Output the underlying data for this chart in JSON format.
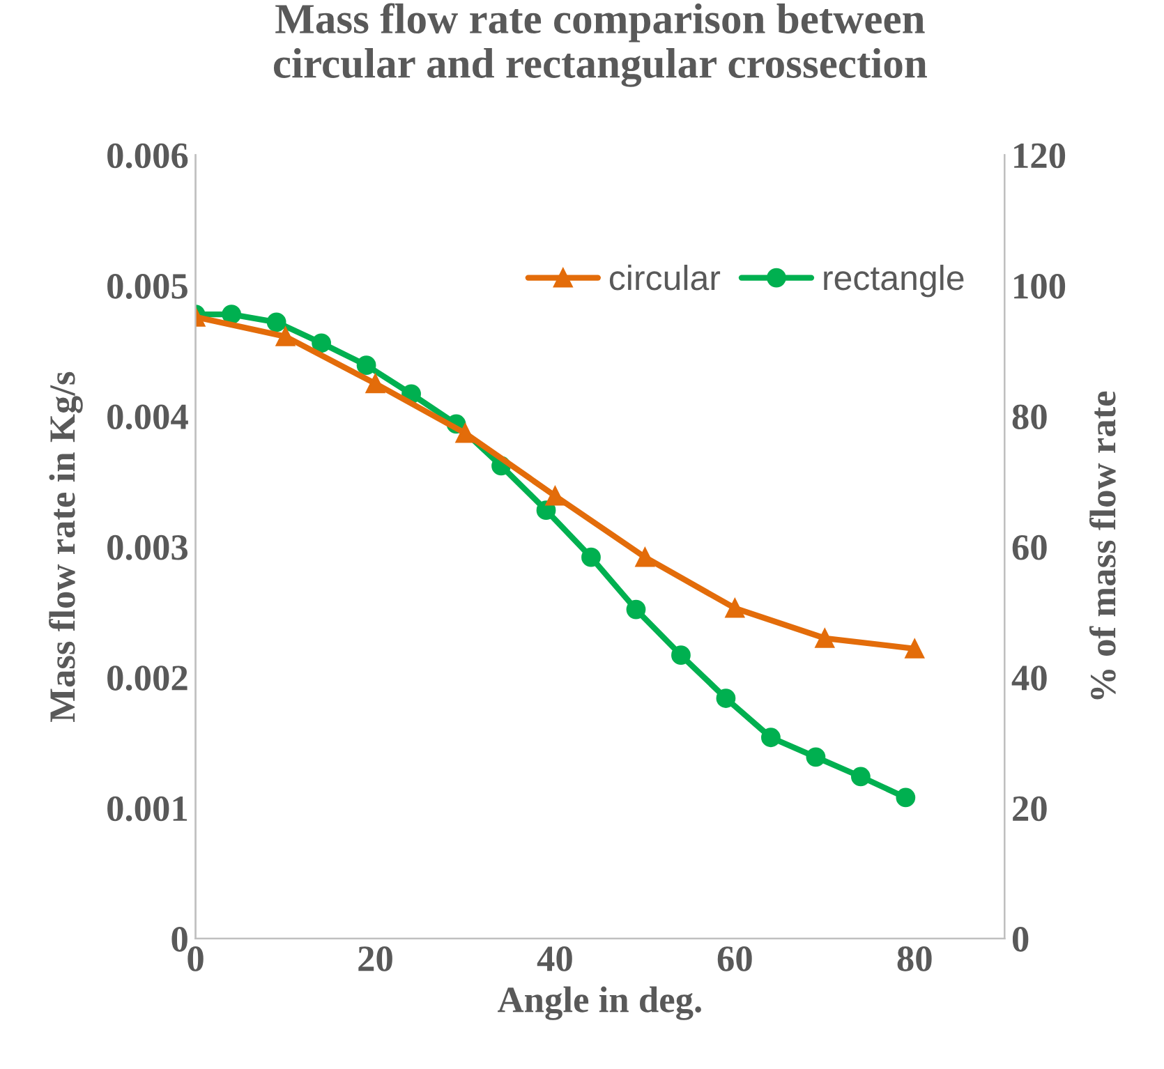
{
  "chart_data": {
    "type": "line",
    "title": "Mass flow rate comparison between\ncircular and rectangular crossection",
    "xlabel": "Angle in deg.",
    "ylabel": "Mass flow rate in Kg/s",
    "y2label": "% of mass flow rate",
    "xlim": [
      0,
      90
    ],
    "xticks": [
      0,
      20,
      40,
      60,
      80
    ],
    "ylim": [
      0,
      0.006
    ],
    "yticks": [
      0,
      0.001,
      0.002,
      0.003,
      0.004,
      0.005,
      0.006
    ],
    "y2lim": [
      0,
      120
    ],
    "y2ticks": [
      0,
      20,
      40,
      60,
      80,
      100,
      120
    ],
    "grid": false,
    "legend": "top right",
    "series": [
      {
        "name": "circular",
        "color": "#e36c0a",
        "marker": "triangle",
        "x": [
          0,
          10,
          20,
          30,
          40,
          50,
          60,
          70,
          80
        ],
        "values": [
          0.00476,
          0.00461,
          0.00425,
          0.00387,
          0.00339,
          0.00292,
          0.00253,
          0.0023,
          0.00222
        ]
      },
      {
        "name": "rectangle",
        "color": "#00b050",
        "marker": "circle",
        "x": [
          0,
          4,
          9,
          14,
          19,
          24,
          29,
          34,
          39,
          44,
          49,
          54,
          59,
          64,
          69,
          74,
          79
        ],
        "values": [
          0.00478,
          0.00478,
          0.00472,
          0.00456,
          0.00439,
          0.00417,
          0.00394,
          0.00362,
          0.00328,
          0.00292,
          0.00252,
          0.00217,
          0.00184,
          0.00154,
          0.00139,
          0.00124,
          0.00108
        ]
      }
    ]
  }
}
